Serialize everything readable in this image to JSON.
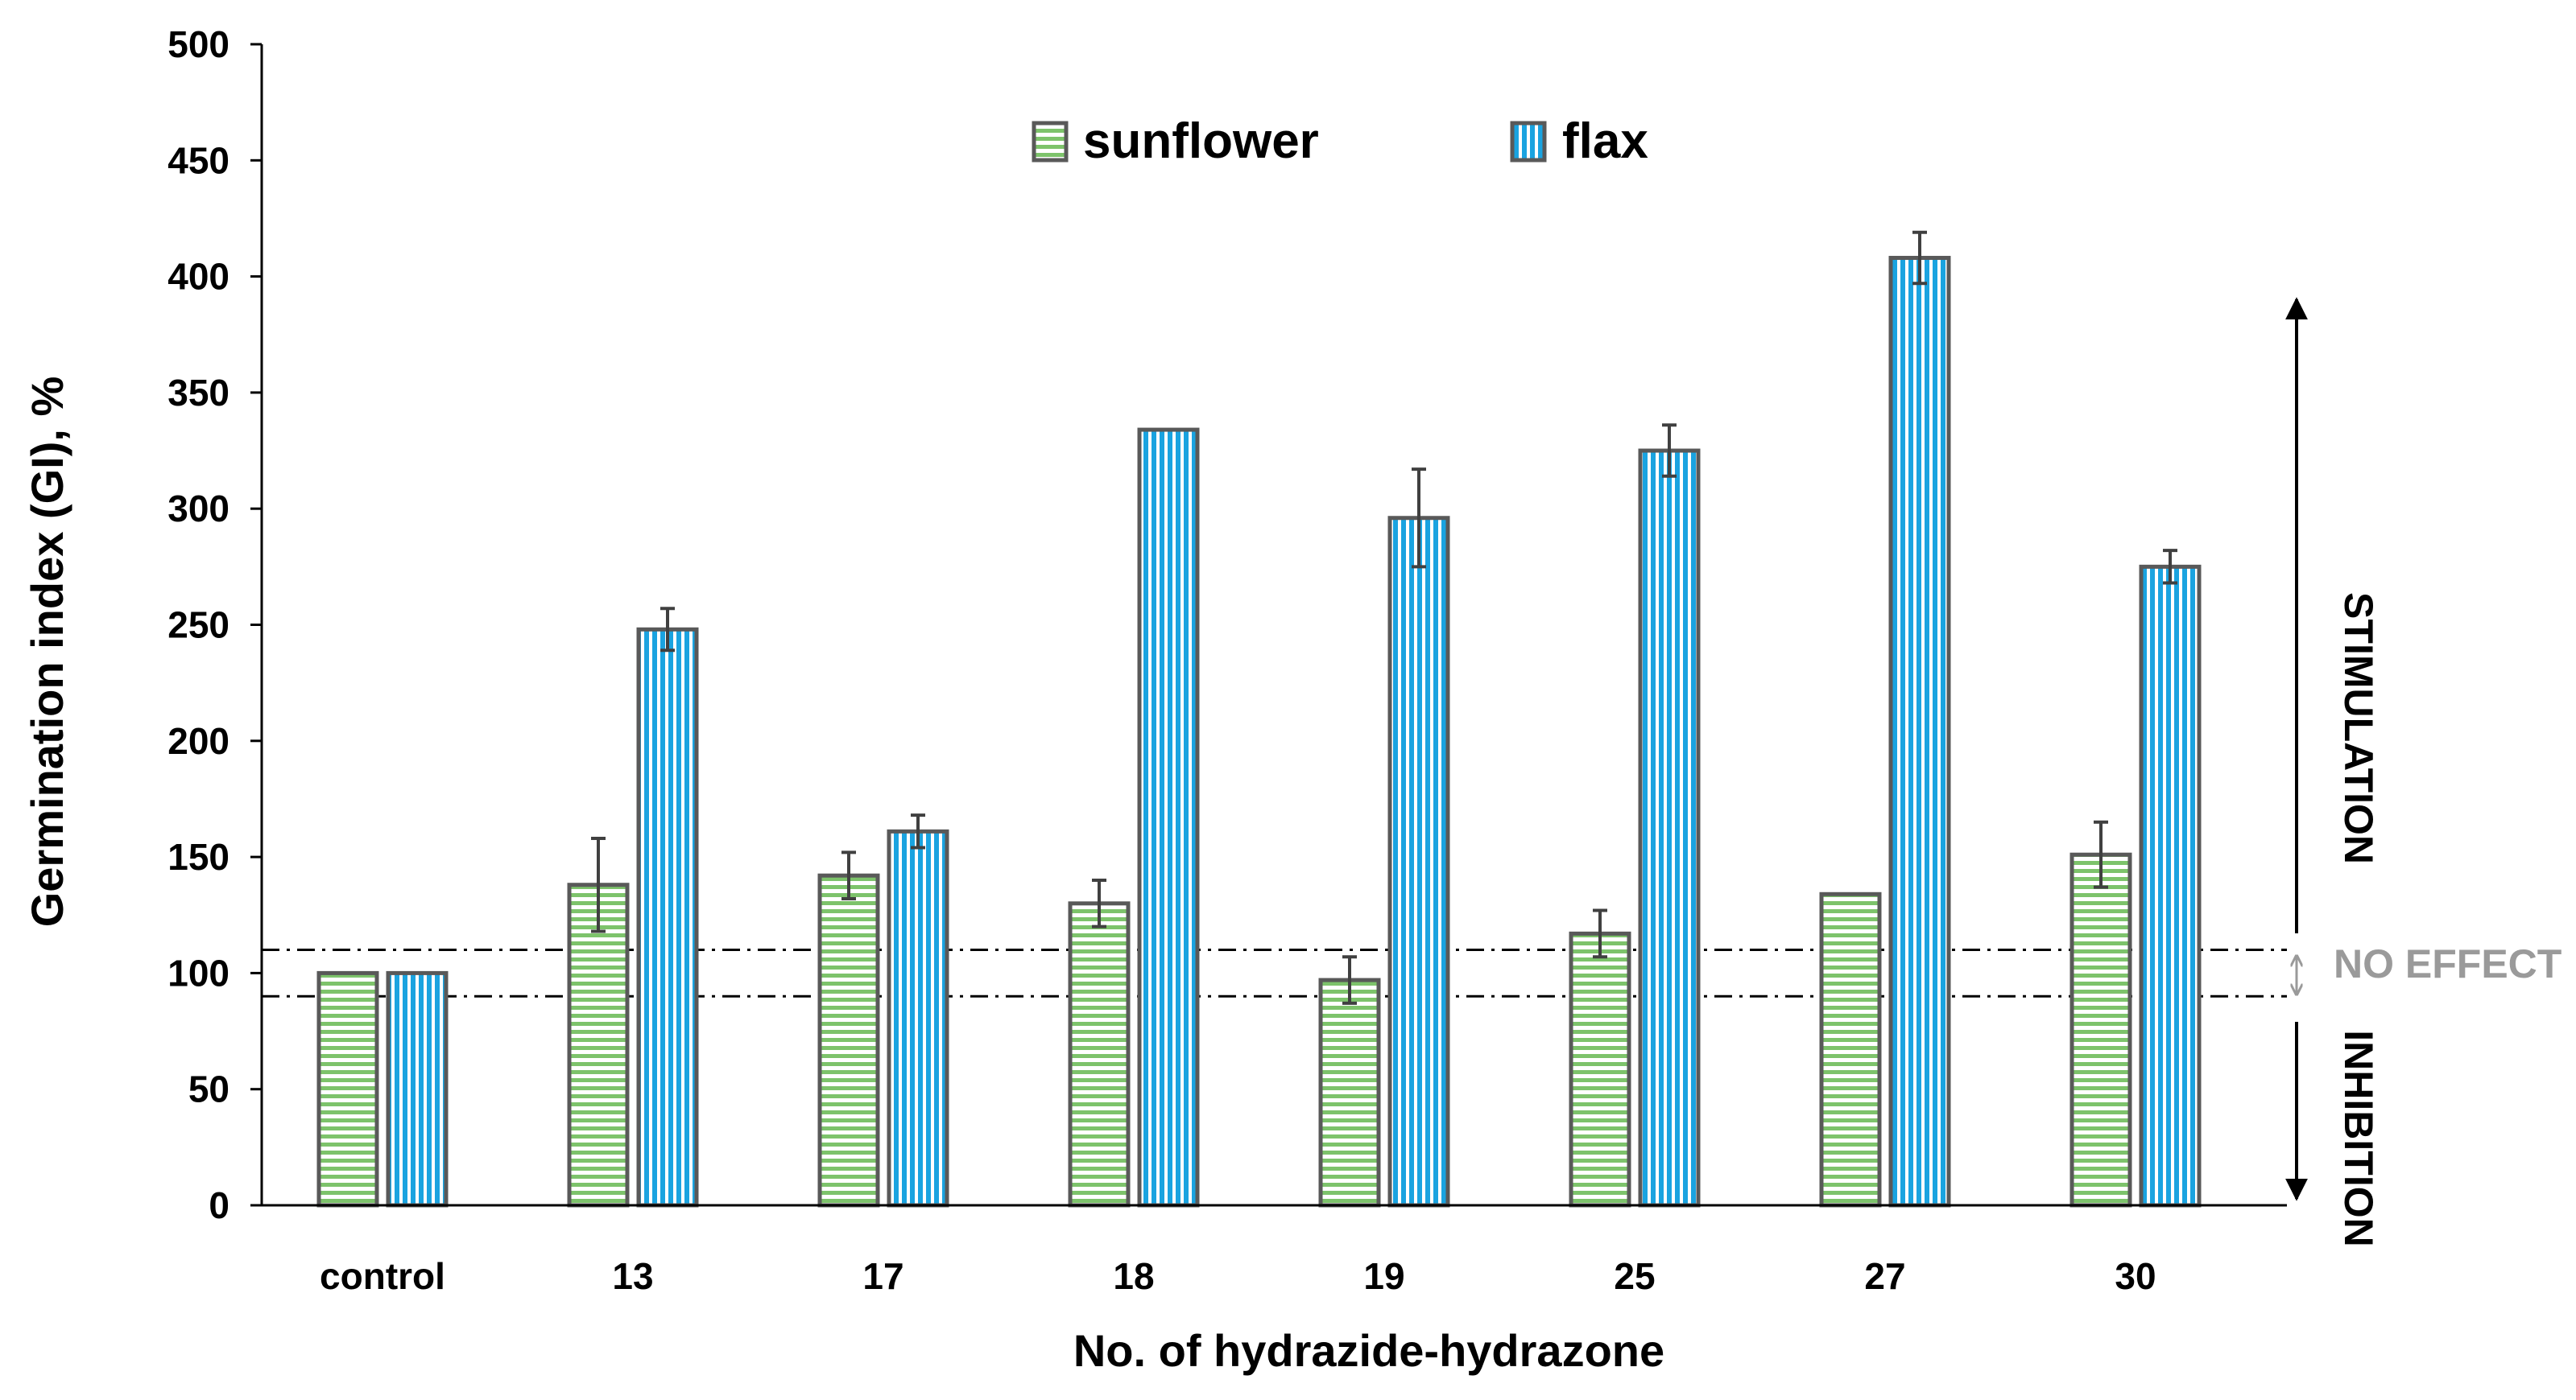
{
  "chart_data": {
    "type": "bar",
    "categories": [
      "control",
      "13",
      "17",
      "18",
      "19",
      "25",
      "27",
      "30"
    ],
    "series": [
      {
        "name": "sunflower",
        "values": [
          100,
          138,
          142,
          130,
          97,
          117,
          134,
          151
        ],
        "errors": [
          0,
          20,
          10,
          10,
          10,
          10,
          0,
          14
        ],
        "color": "#7dc36b"
      },
      {
        "name": "flax",
        "values": [
          100,
          248,
          161,
          334,
          296,
          325,
          408,
          275
        ],
        "errors": [
          0,
          9,
          7,
          0,
          21,
          11,
          11,
          7
        ],
        "color": "#1aa3e0"
      }
    ],
    "xlabel": "No. of hydrazide-hydrazone",
    "ylabel": "Germination index (GI), %",
    "ylim": [
      0,
      500
    ],
    "yticks": [
      0,
      50,
      100,
      150,
      200,
      250,
      300,
      350,
      400,
      450,
      500
    ],
    "reference_lines": [
      90,
      110
    ],
    "legend_position": "top-center",
    "annotations": {
      "stimulation": "STIMULATION",
      "no_effect": "NO EFFECT",
      "inhibition": "INHIBITION"
    }
  },
  "colors": {
    "bar_outline": "#595959",
    "error_bar": "#404040",
    "axis": "#000000",
    "no_effect_text": "#9a9a9a"
  }
}
